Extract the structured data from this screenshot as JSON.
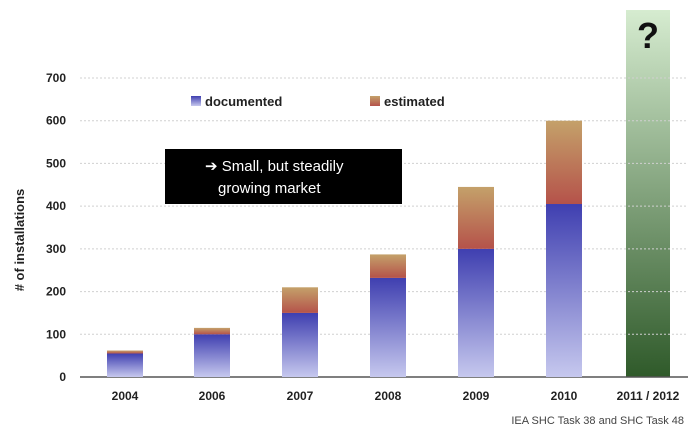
{
  "chart_data": {
    "type": "bar",
    "stacked": true,
    "categories": [
      "2004",
      "2006",
      "2007",
      "2008",
      "2009",
      "2010",
      "2011 / 2012"
    ],
    "series": [
      {
        "name": "documented",
        "values": [
          55,
          100,
          150,
          232,
          300,
          405,
          null
        ]
      },
      {
        "name": "estimated",
        "values": [
          7,
          15,
          60,
          55,
          145,
          195,
          null
        ]
      }
    ],
    "forecast_category": "2011 / 2012",
    "forecast_label": "?",
    "ylabel": "# of installations",
    "xlabel": "",
    "ylim": [
      0,
      700
    ],
    "yticks": [
      0,
      100,
      200,
      300,
      400,
      500,
      600,
      700
    ],
    "grid": true,
    "legend_position": "top",
    "annotation": "➔ Small, but steadily growing market",
    "annotation_lines": [
      "➔ Small, but steadily",
      "growing market"
    ],
    "colors": {
      "documented_top": "#3f3fb0",
      "documented_bottom": "#c6c8ee",
      "estimated_top": "#c4a16a",
      "estimated_bottom": "#b5524a",
      "forecast_top": "#d6ecd0",
      "forecast_bottom": "#2f5a2a"
    }
  },
  "source_note": "IEA SHC Task 38 and SHC Task 48"
}
